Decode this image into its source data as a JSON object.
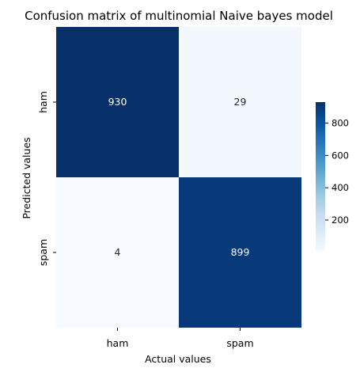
{
  "chart_data": {
    "type": "heatmap",
    "title": "Confusion matrix of multinomial Naive bayes model",
    "xlabel": "Actual values",
    "ylabel": "Predicted values",
    "x_categories": [
      "ham",
      "spam"
    ],
    "y_categories": [
      "ham",
      "spam"
    ],
    "values": [
      [
        930,
        29
      ],
      [
        4,
        899
      ]
    ],
    "value_labels": [
      [
        "930",
        "29"
      ],
      [
        "4",
        "899"
      ]
    ],
    "colormap": "Blues",
    "color_low": "#f7fbff",
    "color_high": "#08306b",
    "vmin": 4,
    "vmax": 930,
    "colorbar": {
      "ticks": [
        200,
        400,
        600,
        800
      ],
      "tick_labels": [
        "200",
        "400",
        "600",
        "800"
      ]
    }
  }
}
